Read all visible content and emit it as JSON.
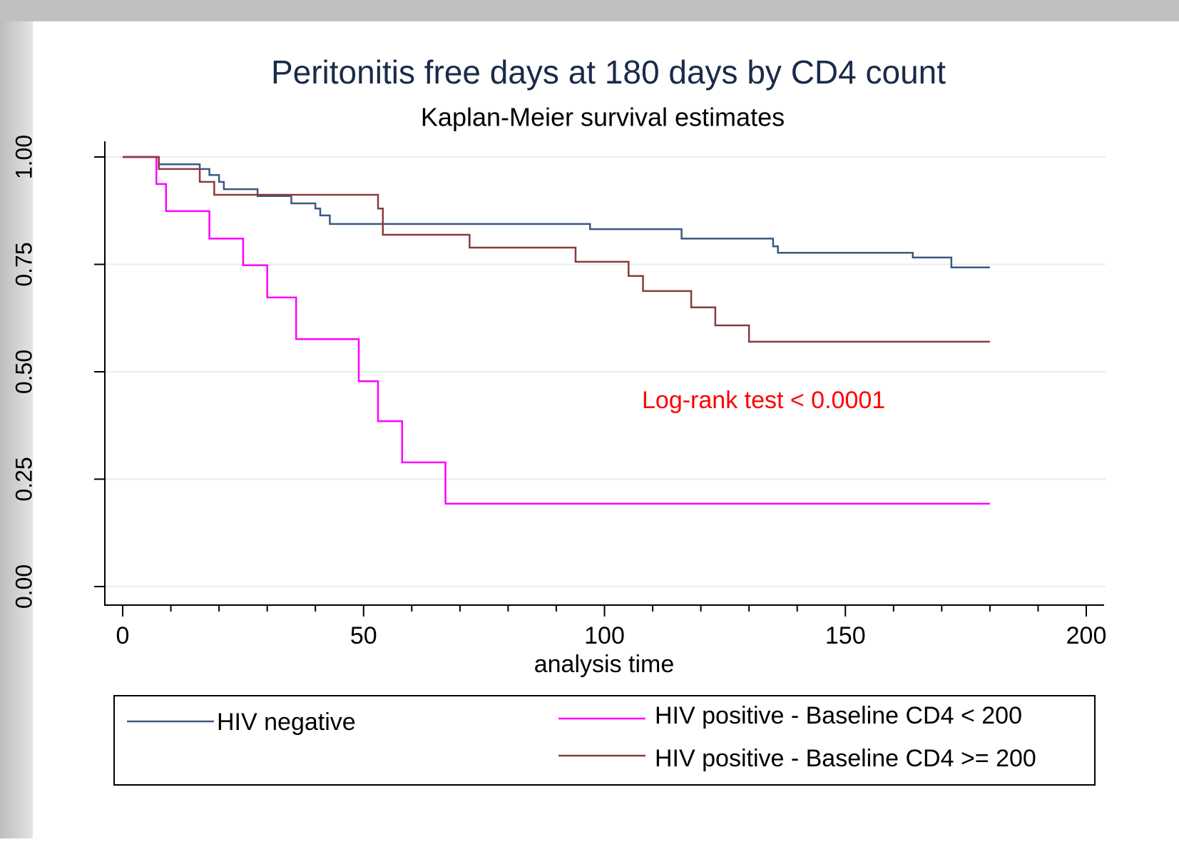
{
  "chart_data": {
    "type": "step",
    "title": "Peritonitis free days at 180 days by CD4 count",
    "subtitle": "Kaplan-Meier survival estimates",
    "x_label": "analysis time",
    "annotation": "Log-rank test < 0.0001",
    "annotation_color": "#ff0000",
    "xlim": [
      0,
      200
    ],
    "xticks": [
      0,
      50,
      100,
      150,
      200
    ],
    "xminorticks": [
      10,
      20,
      30,
      40,
      60,
      70,
      80,
      90,
      110,
      120,
      130,
      140,
      160,
      170,
      180,
      190
    ],
    "ylim": [
      0,
      1
    ],
    "yticks": [
      {
        "value": 0,
        "label": "0.00"
      },
      {
        "value": 0.25,
        "label": "0.25"
      },
      {
        "value": 0.5,
        "label": "0.50"
      },
      {
        "value": 0.75,
        "label": "0.75"
      },
      {
        "value": 1,
        "label": "1.00"
      }
    ],
    "grid": true,
    "legend": "bottom",
    "series": [
      {
        "name": "HIV negative",
        "color": "#3a5a80",
        "x": [
          0,
          7.5,
          16,
          18,
          20,
          21,
          28,
          35,
          40,
          41,
          43,
          97,
          116,
          135,
          136,
          164,
          172,
          180
        ],
        "values": [
          1.0,
          0.983,
          0.972,
          0.958,
          0.942,
          0.925,
          0.909,
          0.892,
          0.88,
          0.864,
          0.844,
          0.832,
          0.81,
          0.792,
          0.777,
          0.766,
          0.743,
          0.743
        ]
      },
      {
        "name": "HIV positive - Baseline CD4 < 200",
        "color": "#ff00ff",
        "x": [
          0,
          7,
          9,
          18,
          25,
          30,
          36,
          49,
          53,
          58,
          67,
          180
        ],
        "values": [
          1.0,
          0.937,
          0.874,
          0.81,
          0.748,
          0.673,
          0.576,
          0.478,
          0.385,
          0.289,
          0.193,
          0.193
        ]
      },
      {
        "name": "HIV positive - Baseline CD4 >= 200",
        "color": "#8b3a3a",
        "x": [
          0,
          7.5,
          16,
          19,
          53,
          54,
          72,
          94,
          105,
          108,
          118,
          123,
          130,
          180
        ],
        "values": [
          1.0,
          0.972,
          0.942,
          0.912,
          0.88,
          0.819,
          0.789,
          0.756,
          0.723,
          0.688,
          0.65,
          0.608,
          0.57,
          0.57
        ]
      }
    ]
  }
}
